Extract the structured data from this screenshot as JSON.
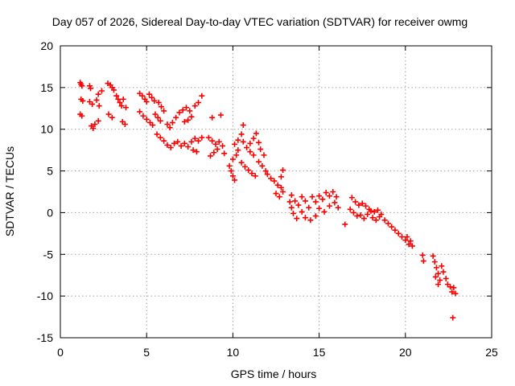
{
  "chart_data": {
    "type": "scatter",
    "title": "Day 057 of 2026, Sidereal Day-to-day VTEC variation (SDTVAR) for receiver owmg",
    "xlabel": "GPS time / hours",
    "ylabel": "SDTVAR / TECUs",
    "xlim": [
      0,
      25
    ],
    "ylim": [
      -15,
      20
    ],
    "xticks": [
      0,
      5,
      10,
      15,
      20,
      25
    ],
    "xtick_labels": [
      "0",
      "5",
      "10",
      "15",
      "20",
      "25"
    ],
    "yticks": [
      -15,
      -10,
      -5,
      0,
      5,
      10,
      15,
      20
    ],
    "ytick_labels": [
      "-15",
      "-10",
      "-5",
      "0",
      "5",
      "10",
      "15",
      "20"
    ],
    "grid": true,
    "marker": "plus",
    "color": "#ff0000",
    "series": [
      {
        "name": "SDTVAR",
        "points": [
          [
            1.15,
            15.6
          ],
          [
            1.2,
            15.4
          ],
          [
            1.25,
            15.2
          ],
          [
            1.2,
            13.6
          ],
          [
            1.3,
            13.4
          ],
          [
            1.15,
            11.8
          ],
          [
            1.25,
            11.6
          ],
          [
            1.7,
            15.2
          ],
          [
            1.75,
            14.9
          ],
          [
            1.7,
            13.3
          ],
          [
            1.85,
            13.0
          ],
          [
            1.8,
            10.4
          ],
          [
            1.9,
            10.1
          ],
          [
            2.0,
            10.6
          ],
          [
            2.2,
            11.0
          ],
          [
            2.1,
            13.5
          ],
          [
            2.25,
            12.8
          ],
          [
            2.2,
            14.2
          ],
          [
            2.4,
            14.6
          ],
          [
            2.75,
            15.5
          ],
          [
            2.9,
            15.3
          ],
          [
            3.0,
            15.0
          ],
          [
            3.1,
            14.7
          ],
          [
            2.8,
            11.8
          ],
          [
            3.0,
            11.4
          ],
          [
            3.25,
            14.0
          ],
          [
            3.35,
            13.6
          ],
          [
            3.45,
            13.2
          ],
          [
            3.55,
            12.8
          ],
          [
            3.65,
            13.6
          ],
          [
            3.6,
            10.9
          ],
          [
            3.75,
            10.6
          ],
          [
            3.8,
            12.6
          ],
          [
            4.6,
            14.3
          ],
          [
            4.75,
            14.0
          ],
          [
            4.9,
            13.6
          ],
          [
            5.0,
            13.3
          ],
          [
            5.15,
            14.2
          ],
          [
            5.3,
            13.8
          ],
          [
            5.45,
            13.4
          ],
          [
            4.6,
            12.1
          ],
          [
            4.8,
            11.6
          ],
          [
            5.0,
            11.2
          ],
          [
            5.2,
            10.8
          ],
          [
            5.35,
            10.5
          ],
          [
            5.5,
            11.8
          ],
          [
            5.65,
            11.4
          ],
          [
            5.8,
            11.0
          ],
          [
            5.7,
            13.2
          ],
          [
            5.85,
            12.7
          ],
          [
            6.0,
            12.2
          ],
          [
            5.6,
            9.4
          ],
          [
            5.8,
            9.0
          ],
          [
            6.0,
            8.6
          ],
          [
            6.2,
            8.1
          ],
          [
            6.4,
            7.8
          ],
          [
            6.2,
            10.6
          ],
          [
            6.35,
            10.2
          ],
          [
            6.5,
            10.8
          ],
          [
            6.7,
            11.4
          ],
          [
            6.9,
            12.0
          ],
          [
            7.1,
            12.3
          ],
          [
            7.3,
            12.6
          ],
          [
            7.5,
            12.2
          ],
          [
            7.2,
            10.9
          ],
          [
            7.4,
            11.1
          ],
          [
            7.6,
            11.5
          ],
          [
            7.8,
            12.8
          ],
          [
            8.0,
            13.2
          ],
          [
            8.2,
            14.0
          ],
          [
            6.6,
            8.3
          ],
          [
            6.8,
            8.5
          ],
          [
            7.0,
            8.0
          ],
          [
            7.2,
            8.3
          ],
          [
            7.4,
            7.9
          ],
          [
            7.6,
            8.5
          ],
          [
            7.8,
            8.9
          ],
          [
            8.0,
            8.6
          ],
          [
            8.2,
            9.0
          ],
          [
            7.7,
            7.5
          ],
          [
            7.9,
            7.3
          ],
          [
            8.8,
            11.4
          ],
          [
            9.3,
            11.7
          ],
          [
            8.6,
            9.0
          ],
          [
            8.8,
            8.6
          ],
          [
            9.0,
            8.2
          ],
          [
            9.2,
            8.5
          ],
          [
            9.4,
            8.0
          ],
          [
            8.7,
            6.8
          ],
          [
            8.9,
            7.2
          ],
          [
            9.1,
            7.6
          ],
          [
            9.5,
            7.1
          ],
          [
            9.8,
            5.6
          ],
          [
            9.9,
            5.0
          ],
          [
            10.0,
            4.4
          ],
          [
            10.1,
            3.9
          ],
          [
            10.0,
            6.4
          ],
          [
            10.2,
            6.9
          ],
          [
            10.3,
            7.5
          ],
          [
            10.1,
            8.2
          ],
          [
            10.3,
            8.7
          ],
          [
            10.5,
            9.4
          ],
          [
            10.6,
            8.5
          ],
          [
            10.8,
            7.8
          ],
          [
            11.0,
            7.3
          ],
          [
            11.2,
            6.9
          ],
          [
            10.5,
            6.0
          ],
          [
            10.7,
            5.5
          ],
          [
            10.9,
            5.1
          ],
          [
            11.1,
            4.7
          ],
          [
            11.3,
            4.4
          ],
          [
            11.0,
            8.3
          ],
          [
            11.2,
            8.9
          ],
          [
            11.35,
            9.5
          ],
          [
            11.5,
            8.4
          ],
          [
            11.6,
            7.6
          ],
          [
            11.8,
            6.9
          ],
          [
            11.5,
            6.1
          ],
          [
            11.7,
            5.6
          ],
          [
            11.9,
            5.0
          ],
          [
            12.0,
            4.6
          ],
          [
            12.2,
            4.1
          ],
          [
            12.4,
            3.8
          ],
          [
            12.6,
            3.3
          ],
          [
            12.8,
            3.0
          ],
          [
            12.5,
            2.3
          ],
          [
            12.7,
            1.9
          ],
          [
            12.9,
            2.5
          ],
          [
            12.8,
            4.3
          ],
          [
            12.9,
            5.1
          ],
          [
            10.6,
            10.5
          ],
          [
            13.3,
            1.3
          ],
          [
            13.4,
            0.6
          ],
          [
            13.5,
            -0.1
          ],
          [
            13.7,
            -0.7
          ],
          [
            13.4,
            2.1
          ],
          [
            13.6,
            1.4
          ],
          [
            13.8,
            0.9
          ],
          [
            14.0,
            1.9
          ],
          [
            14.2,
            1.4
          ],
          [
            14.4,
            0.6
          ],
          [
            14.6,
            1.9
          ],
          [
            14.8,
            1.3
          ],
          [
            15.0,
            2.0
          ],
          [
            15.2,
            1.6
          ],
          [
            15.4,
            2.4
          ],
          [
            15.6,
            2.0
          ],
          [
            15.8,
            2.5
          ],
          [
            16.0,
            1.9
          ],
          [
            14.2,
            -0.6
          ],
          [
            14.5,
            -0.9
          ],
          [
            14.8,
            -0.4
          ],
          [
            15.0,
            0.5
          ],
          [
            15.3,
            0.1
          ],
          [
            15.6,
            0.8
          ],
          [
            15.9,
            1.2
          ],
          [
            14.0,
            0.1
          ],
          [
            16.1,
            0.6
          ],
          [
            16.5,
            -1.4
          ],
          [
            16.9,
            1.8
          ],
          [
            17.1,
            1.3
          ],
          [
            17.3,
            0.9
          ],
          [
            17.5,
            1.1
          ],
          [
            17.7,
            0.8
          ],
          [
            17.9,
            0.4
          ],
          [
            16.8,
            0.4
          ],
          [
            17.0,
            0.0
          ],
          [
            17.2,
            -0.4
          ],
          [
            17.4,
            -0.3
          ],
          [
            17.6,
            -0.7
          ],
          [
            17.8,
            -0.2
          ],
          [
            18.0,
            0.2
          ],
          [
            18.2,
            0.1
          ],
          [
            18.4,
            0.3
          ],
          [
            18.6,
            -0.2
          ],
          [
            18.1,
            -0.6
          ],
          [
            18.3,
            -0.9
          ],
          [
            18.5,
            -0.5
          ],
          [
            18.8,
            -0.9
          ],
          [
            19.0,
            -1.3
          ],
          [
            19.2,
            -1.7
          ],
          [
            19.4,
            -2.1
          ],
          [
            19.6,
            -2.5
          ],
          [
            19.8,
            -2.9
          ],
          [
            20.0,
            -3.3
          ],
          [
            20.2,
            -3.8
          ],
          [
            20.4,
            -4.0
          ],
          [
            20.1,
            -2.9
          ],
          [
            20.3,
            -3.4
          ],
          [
            21.0,
            -5.1
          ],
          [
            21.05,
            -5.8
          ],
          [
            21.6,
            -5.2
          ],
          [
            21.7,
            -5.9
          ],
          [
            21.8,
            -6.6
          ],
          [
            21.9,
            -7.3
          ],
          [
            22.0,
            -8.1
          ],
          [
            21.75,
            -7.7
          ],
          [
            21.9,
            -8.6
          ],
          [
            22.1,
            -6.4
          ],
          [
            22.2,
            -7.1
          ],
          [
            22.35,
            -7.9
          ],
          [
            22.45,
            -8.6
          ],
          [
            22.6,
            -8.9
          ],
          [
            22.7,
            -9.5
          ],
          [
            22.8,
            -9.0
          ],
          [
            22.9,
            -9.7
          ],
          [
            22.75,
            -12.6
          ]
        ]
      }
    ]
  }
}
